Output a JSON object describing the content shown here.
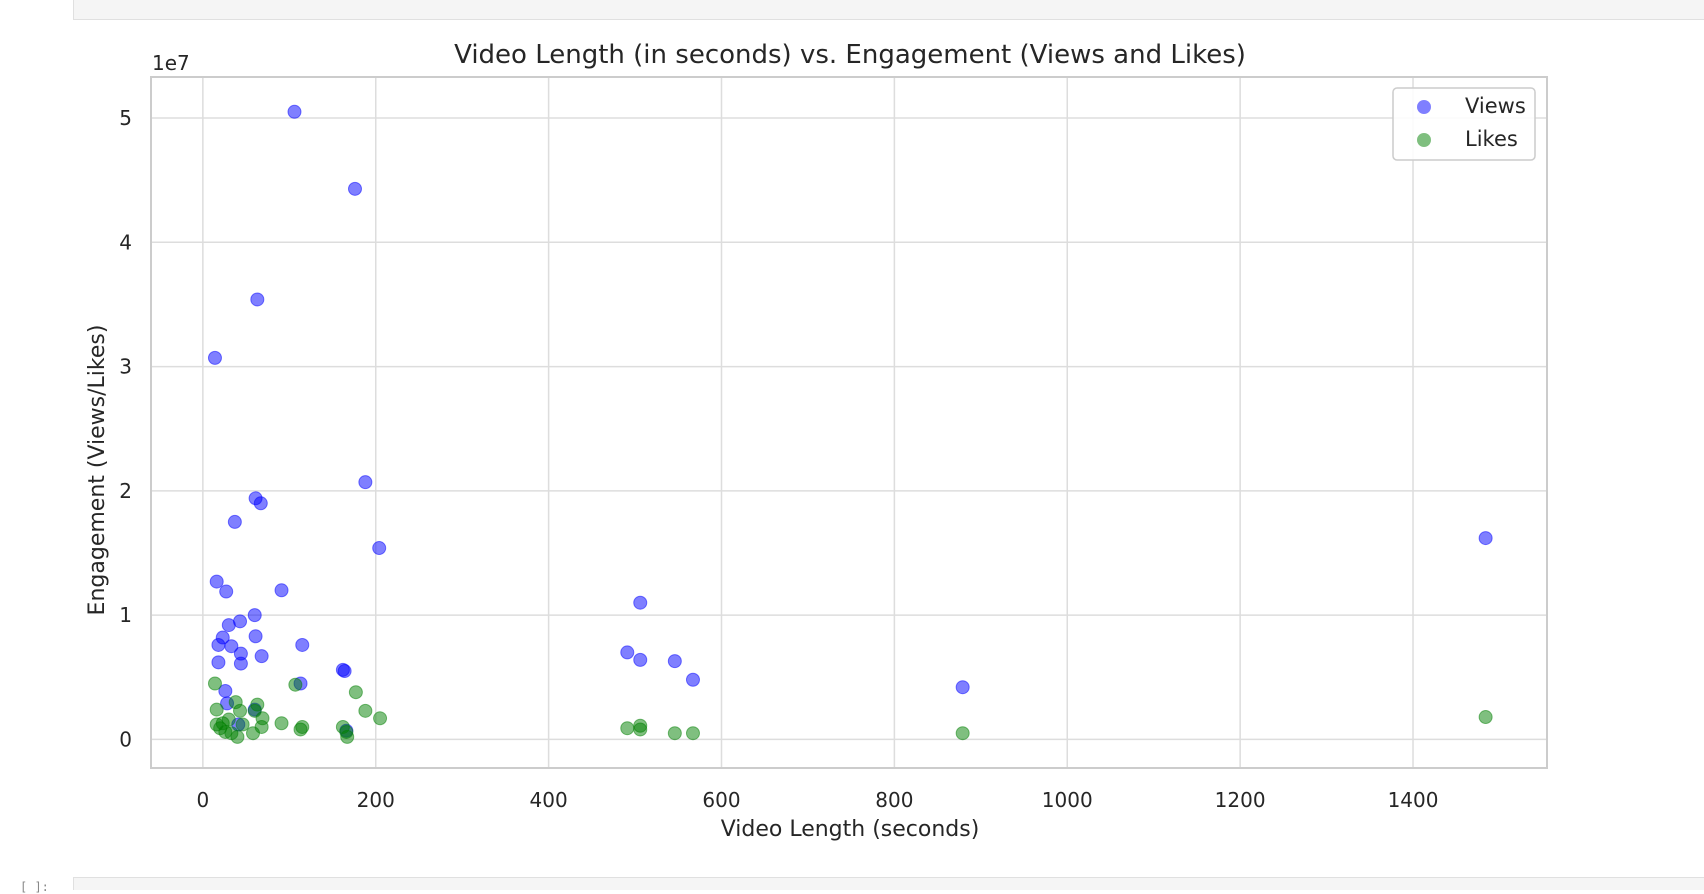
{
  "notebook": {
    "prompt_mark": "[ ]:"
  },
  "chart_data": {
    "type": "scatter",
    "title": "Video Length (in seconds) vs. Engagement (Views and Likes)",
    "xlabel": "Video Length (seconds)",
    "ylabel": "Engagement (Views/Likes)",
    "y_offset_text": "1e7",
    "xlim": [
      -60,
      1555
    ],
    "ylim": [
      -2300000,
      53300000
    ],
    "x_ticks": [
      0,
      200,
      400,
      600,
      800,
      1000,
      1200,
      1400
    ],
    "x_tick_labels": [
      "0",
      "200",
      "400",
      "600",
      "800",
      "1000",
      "1200",
      "1400"
    ],
    "y_ticks": [
      0,
      10000000,
      20000000,
      30000000,
      40000000,
      50000000
    ],
    "y_tick_labels": [
      "0",
      "1",
      "2",
      "3",
      "4",
      "5"
    ],
    "grid": true,
    "legend_position": "top-right",
    "series": [
      {
        "name": "Views",
        "color": "#0000ff",
        "points": [
          [
            106,
            50500000
          ],
          [
            176,
            44300000
          ],
          [
            63,
            35400000
          ],
          [
            14,
            30700000
          ],
          [
            188,
            20700000
          ],
          [
            61,
            19400000
          ],
          [
            67,
            19000000
          ],
          [
            37,
            17500000
          ],
          [
            204,
            15400000
          ],
          [
            16,
            12700000
          ],
          [
            27,
            11900000
          ],
          [
            91,
            12000000
          ],
          [
            60,
            10000000
          ],
          [
            43,
            9500000
          ],
          [
            30,
            9200000
          ],
          [
            23,
            8200000
          ],
          [
            61,
            8300000
          ],
          [
            18,
            7600000
          ],
          [
            33,
            7500000
          ],
          [
            115,
            7600000
          ],
          [
            44,
            6900000
          ],
          [
            68,
            6700000
          ],
          [
            18,
            6200000
          ],
          [
            44,
            6100000
          ],
          [
            162,
            5600000
          ],
          [
            164,
            5500000
          ],
          [
            113,
            4500000
          ],
          [
            26,
            3900000
          ],
          [
            28,
            2900000
          ],
          [
            60,
            2400000
          ],
          [
            41,
            1200000
          ],
          [
            166,
            700000
          ],
          [
            506,
            11000000
          ],
          [
            491,
            7000000
          ],
          [
            506,
            6400000
          ],
          [
            546,
            6300000
          ],
          [
            567,
            4800000
          ],
          [
            879,
            4200000
          ],
          [
            1484,
            16200000
          ]
        ]
      },
      {
        "name": "Likes",
        "color": "#008000",
        "points": [
          [
            14,
            4500000
          ],
          [
            107,
            4400000
          ],
          [
            177,
            3800000
          ],
          [
            38,
            3000000
          ],
          [
            63,
            2800000
          ],
          [
            16,
            2400000
          ],
          [
            43,
            2300000
          ],
          [
            60,
            2300000
          ],
          [
            188,
            2300000
          ],
          [
            205,
            1700000
          ],
          [
            69,
            1700000
          ],
          [
            30,
            1600000
          ],
          [
            23,
            1300000
          ],
          [
            16,
            1200000
          ],
          [
            91,
            1300000
          ],
          [
            46,
            1200000
          ],
          [
            68,
            1000000
          ],
          [
            115,
            1000000
          ],
          [
            162,
            1000000
          ],
          [
            113,
            800000
          ],
          [
            20,
            900000
          ],
          [
            26,
            600000
          ],
          [
            33,
            500000
          ],
          [
            58,
            500000
          ],
          [
            40,
            200000
          ],
          [
            166,
            600000
          ],
          [
            167,
            200000
          ],
          [
            506,
            1100000
          ],
          [
            491,
            900000
          ],
          [
            506,
            800000
          ],
          [
            546,
            500000
          ],
          [
            567,
            500000
          ],
          [
            879,
            500000
          ],
          [
            1484,
            1800000
          ]
        ]
      }
    ]
  }
}
